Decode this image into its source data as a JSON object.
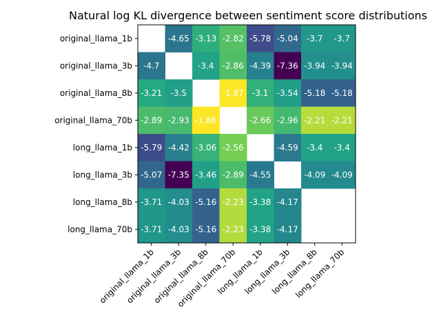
{
  "chart_data": {
    "type": "heatmap",
    "title": "Natural log KL divergence between sentiment score distributions",
    "xlabel": "",
    "ylabel": "",
    "x_categories": [
      "original_llama_1b",
      "original_llama_3b",
      "original_llama_8b",
      "original_llama_70b",
      "long_llama_1b",
      "long_llama_3b",
      "long_llama_8b",
      "long_llama_70b"
    ],
    "y_categories": [
      "original_llama_1b",
      "original_llama_3b",
      "original_llama_8b",
      "original_llama_70b",
      "long_llama_1b",
      "long_llama_3b",
      "long_llama_8b",
      "long_llama_70b"
    ],
    "values": [
      [
        null,
        -4.65,
        -3.13,
        -2.82,
        -5.78,
        -5.04,
        -3.7,
        -3.7
      ],
      [
        -4.7,
        null,
        -3.4,
        -2.86,
        -4.39,
        -7.36,
        -3.94,
        -3.94
      ],
      [
        -3.21,
        -3.5,
        null,
        -1.87,
        -3.1,
        -3.54,
        -5.18,
        -5.18
      ],
      [
        -2.89,
        -2.93,
        -1.86,
        null,
        -2.66,
        -2.96,
        -2.21,
        -2.21
      ],
      [
        -5.79,
        -4.42,
        -3.06,
        -2.56,
        null,
        -4.59,
        -3.4,
        -3.4
      ],
      [
        -5.07,
        -7.35,
        -3.46,
        -2.89,
        -4.55,
        null,
        -4.09,
        -4.09
      ],
      [
        -3.71,
        -4.03,
        -5.16,
        -2.23,
        -3.38,
        -4.17,
        null,
        null
      ],
      [
        -3.71,
        -4.03,
        -5.16,
        -2.23,
        -3.38,
        -4.17,
        null,
        null
      ]
    ],
    "labels": [
      [
        null,
        "-4.65",
        "-3.13",
        "-2.82",
        "-5.78",
        "-5.04",
        "-3.7",
        "-3.7"
      ],
      [
        "-4.7",
        null,
        "-3.4",
        "-2.86",
        "-4.39",
        "-7.36",
        "-3.94",
        "-3.94"
      ],
      [
        "-3.21",
        "-3.5",
        null,
        "-1.87",
        "-3.1",
        "-3.54",
        "-5.18",
        "-5.18"
      ],
      [
        "-2.89",
        "-2.93",
        "-1.86",
        null,
        "-2.66",
        "-2.96",
        "-2.21",
        "-2.21"
      ],
      [
        "-5.79",
        "-4.42",
        "-3.06",
        "-2.56",
        null,
        "-4.59",
        "-3.4",
        "-3.4"
      ],
      [
        "-5.07",
        "-7.35",
        "-3.46",
        "-2.89",
        "-4.55",
        null,
        "-4.09",
        "-4.09"
      ],
      [
        "-3.71",
        "-4.03",
        "-5.16",
        "-2.23",
        "-3.38",
        "-4.17",
        null,
        null
      ],
      [
        "-3.71",
        "-4.03",
        "-5.16",
        "-2.23",
        "-3.38",
        "-4.17",
        null,
        null
      ]
    ],
    "colormap": "viridis",
    "color_range": [
      -7.36,
      -1.86
    ],
    "grid": false,
    "legend": "none"
  }
}
